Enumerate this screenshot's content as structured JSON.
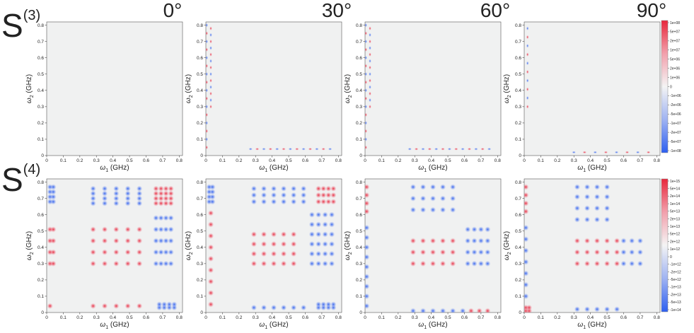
{
  "figure": {
    "row_labels": [
      {
        "base": "S",
        "sup": "(3)"
      },
      {
        "base": "S",
        "sup": "(4)"
      }
    ],
    "column_titles": [
      "0°",
      "30°",
      "60°",
      "90°"
    ]
  },
  "chart_data": {
    "type": "heatmap",
    "xlabel_base": "ω",
    "xlabel_sub": "1",
    "xlabel_unit": "(GHz)",
    "ylabel_base": "ω",
    "ylabel_sub": "2",
    "ylabel_unit": "(GHz)",
    "xlim": [
      0,
      0.82
    ],
    "ylim": [
      0,
      0.82
    ],
    "x_ticks": [
      "0",
      "0.1",
      "0.2",
      "0.3",
      "0.4",
      "0.5",
      "0.6",
      "0.7",
      "0.8"
    ],
    "y_ticks": [
      "0",
      "0.1",
      "0.2",
      "0.3",
      "0.4",
      "0.5",
      "0.6",
      "0.7",
      "0.8"
    ],
    "background_color": "#f0f1f1",
    "positive_color": "#e8283c",
    "negative_color": "#2d5ff0",
    "colorbars": [
      {
        "row": 0,
        "labels": [
          "1e+08",
          "5e+07",
          "2e+07",
          "1e+07",
          "5e+06",
          "2e+06",
          "1e+06",
          "0",
          "-1e+06",
          "-2e+06",
          "-5e+06",
          "-1e+07",
          "-2e+07",
          "-5e+07",
          "-1e+08"
        ]
      },
      {
        "row": 1,
        "labels": [
          "1e+15",
          "5e+14",
          "2e+14",
          "1e+14",
          "5e+13",
          "2e+13",
          "1e+13",
          "5e+12",
          "2e+12",
          "1e+12",
          "0",
          "-1e+12",
          "-2e+12",
          "-5e+12",
          "-1e+13",
          "-2e+13",
          "-5e+13",
          "-1e+14"
        ]
      }
    ],
    "panels": [
      {
        "row": 0,
        "column": "0°",
        "features": []
      },
      {
        "row": 0,
        "column": "30°",
        "features": [
          {
            "kind": "y_chain",
            "x": 0.03,
            "y_from": 0.3,
            "y_to": 0.78,
            "n": 13
          },
          {
            "kind": "x_chain",
            "y": 0.04,
            "x_from": 0.27,
            "x_to": 0.75,
            "n": 13
          },
          {
            "kind": "y_chain",
            "x": 0.005,
            "y_from": 0.05,
            "y_to": 0.8,
            "n": 16
          }
        ]
      },
      {
        "row": 0,
        "column": "60°",
        "features": [
          {
            "kind": "y_chain",
            "x": 0.03,
            "y_from": 0.3,
            "y_to": 0.78,
            "n": 13
          },
          {
            "kind": "x_chain",
            "y": 0.04,
            "x_from": 0.27,
            "x_to": 0.75,
            "n": 13
          },
          {
            "kind": "y_chain",
            "x": 0.005,
            "y_from": 0.05,
            "y_to": 0.8,
            "n": 16
          }
        ]
      },
      {
        "row": 0,
        "column": "90°",
        "features": [
          {
            "kind": "y_chain",
            "x": 0.02,
            "y_from": 0.3,
            "y_to": 0.78,
            "n": 10
          },
          {
            "kind": "x_chain",
            "y": 0.02,
            "x_from": 0.3,
            "x_to": 0.75,
            "n": 8
          }
        ]
      },
      {
        "row": 1,
        "column": "0°",
        "features": [
          {
            "kind": "grid",
            "sign": "neg",
            "xs": [
              0.02,
              0.04
            ],
            "ys": [
              0.68,
              0.71,
              0.74,
              0.77
            ]
          },
          {
            "kind": "grid",
            "sign": "neg",
            "xs": [
              0.28,
              0.35,
              0.42,
              0.49,
              0.56
            ],
            "ys": [
              0.67,
              0.7,
              0.73,
              0.76
            ]
          },
          {
            "kind": "grid",
            "sign": "pos",
            "xs": [
              0.66,
              0.69,
              0.72,
              0.75
            ],
            "ys": [
              0.67,
              0.7,
              0.73,
              0.76
            ]
          },
          {
            "kind": "grid",
            "sign": "neg",
            "xs": [
              0.66,
              0.69,
              0.72,
              0.75
            ],
            "ys": [
              0.3,
              0.37,
              0.44,
              0.51,
              0.58
            ]
          },
          {
            "kind": "grid",
            "sign": "pos",
            "xs": [
              0.02,
              0.04
            ],
            "ys": [
              0.3,
              0.37,
              0.44,
              0.51
            ]
          },
          {
            "kind": "grid",
            "sign": "pos",
            "xs": [
              0.28,
              0.35,
              0.42,
              0.49,
              0.56
            ],
            "ys": [
              0.3,
              0.37,
              0.44,
              0.51
            ]
          },
          {
            "kind": "grid",
            "sign": "pos",
            "xs": [
              0.02,
              0.28,
              0.35,
              0.42,
              0.49,
              0.56
            ],
            "ys": [
              0.04
            ]
          },
          {
            "kind": "grid",
            "sign": "neg",
            "xs": [
              0.68,
              0.71,
              0.74,
              0.77
            ],
            "ys": [
              0.03,
              0.05
            ]
          }
        ]
      },
      {
        "row": 1,
        "column": "30°",
        "features": [
          {
            "kind": "grid",
            "sign": "neg",
            "xs": [
              0.02,
              0.04
            ],
            "ys": [
              0.68,
              0.71,
              0.74,
              0.77
            ]
          },
          {
            "kind": "grid",
            "sign": "neg",
            "xs": [
              0.29,
              0.35,
              0.41,
              0.47,
              0.53,
              0.59
            ],
            "ys": [
              0.68,
              0.72,
              0.76
            ]
          },
          {
            "kind": "grid",
            "sign": "pos",
            "xs": [
              0.68,
              0.71,
              0.74,
              0.77
            ],
            "ys": [
              0.68,
              0.72,
              0.76
            ]
          },
          {
            "kind": "grid",
            "sign": "neg",
            "xs": [
              0.64,
              0.68,
              0.72,
              0.76
            ],
            "ys": [
              0.3,
              0.36,
              0.42,
              0.48,
              0.54,
              0.6
            ]
          },
          {
            "kind": "grid",
            "sign": "pos",
            "xs": [
              0.03
            ],
            "ys": [
              0.05,
              0.12,
              0.19,
              0.26,
              0.33,
              0.4,
              0.47,
              0.54,
              0.61
            ]
          },
          {
            "kind": "grid",
            "sign": "pos",
            "xs": [
              0.29,
              0.35,
              0.41,
              0.47,
              0.53
            ],
            "ys": [
              0.3,
              0.36,
              0.42,
              0.48
            ]
          },
          {
            "kind": "grid",
            "sign": "neg",
            "xs": [
              0.29,
              0.35,
              0.41,
              0.47,
              0.53,
              0.59
            ],
            "ys": [
              0.03
            ]
          },
          {
            "kind": "grid",
            "sign": "neg",
            "xs": [
              0.68,
              0.71,
              0.74,
              0.77
            ],
            "ys": [
              0.03,
              0.05
            ]
          }
        ]
      },
      {
        "row": 1,
        "column": "60°",
        "features": [
          {
            "kind": "grid",
            "sign": "pos",
            "xs": [
              0.01
            ],
            "ys": [
              0.62,
              0.67,
              0.72,
              0.77
            ]
          },
          {
            "kind": "grid",
            "sign": "neg",
            "xs": [
              0.01
            ],
            "ys": [
              0.04,
              0.1,
              0.16,
              0.22,
              0.28,
              0.34,
              0.4,
              0.46,
              0.52
            ]
          },
          {
            "kind": "grid",
            "sign": "neg",
            "xs": [
              0.29,
              0.35,
              0.41,
              0.47,
              0.53
            ],
            "ys": [
              0.63,
              0.7,
              0.77
            ]
          },
          {
            "kind": "grid",
            "sign": "pos",
            "xs": [
              0.29,
              0.35,
              0.41,
              0.47,
              0.53
            ],
            "ys": [
              0.3,
              0.37,
              0.44
            ]
          },
          {
            "kind": "grid",
            "sign": "neg",
            "xs": [
              0.62,
              0.66,
              0.7,
              0.74
            ],
            "ys": [
              0.3,
              0.37,
              0.44,
              0.51
            ]
          },
          {
            "kind": "grid",
            "sign": "neg",
            "xs": [
              0.29,
              0.35,
              0.41,
              0.47,
              0.53,
              0.59
            ],
            "ys": [
              0.01
            ]
          },
          {
            "kind": "grid",
            "sign": "pos",
            "xs": [
              0.64,
              0.69,
              0.74
            ],
            "ys": [
              0.01
            ]
          }
        ]
      },
      {
        "row": 1,
        "column": "90°",
        "features": [
          {
            "kind": "grid",
            "sign": "pos",
            "xs": [
              0.01
            ],
            "ys": [
              0.62,
              0.67,
              0.72,
              0.77
            ]
          },
          {
            "kind": "grid",
            "sign": "neg",
            "xs": [
              0.01
            ],
            "ys": [
              0.1,
              0.17,
              0.24,
              0.31,
              0.38,
              0.45,
              0.52
            ]
          },
          {
            "kind": "grid",
            "sign": "neg",
            "xs": [
              0.32,
              0.38,
              0.44,
              0.5
            ],
            "ys": [
              0.57,
              0.64,
              0.71,
              0.77
            ]
          },
          {
            "kind": "grid",
            "sign": "pos",
            "xs": [
              0.32,
              0.38,
              0.44,
              0.5,
              0.56
            ],
            "ys": [
              0.3,
              0.37,
              0.44
            ]
          },
          {
            "kind": "grid",
            "sign": "neg",
            "xs": [
              0.6,
              0.65,
              0.7
            ],
            "ys": [
              0.3,
              0.37,
              0.44
            ]
          },
          {
            "kind": "grid",
            "sign": "neg",
            "xs": [
              0.32,
              0.38,
              0.44,
              0.5,
              0.56
            ],
            "ys": [
              0.02
            ]
          },
          {
            "kind": "grid",
            "sign": "pos",
            "xs": [
              0.01,
              0.03
            ],
            "ys": [
              0.01,
              0.03
            ]
          }
        ]
      }
    ]
  }
}
